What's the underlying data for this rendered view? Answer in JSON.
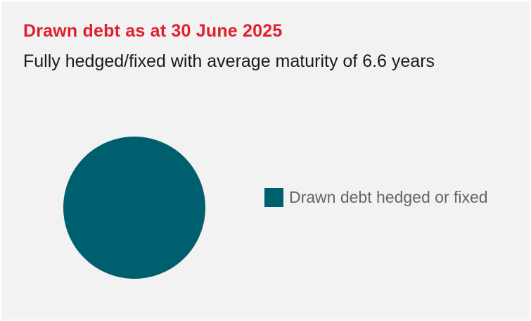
{
  "chart_data": {
    "type": "pie",
    "title": "Drawn debt as at 30 June 2025",
    "subtitle": "Fully hedged/fixed with average maturity of 6.6 years",
    "categories": [
      "Drawn debt hedged or fixed"
    ],
    "values": [
      100
    ],
    "colors": [
      "#005f6e"
    ],
    "legend_position": "right"
  },
  "style": {
    "title_color": "#e0202f",
    "background": "#f2f2f2"
  }
}
